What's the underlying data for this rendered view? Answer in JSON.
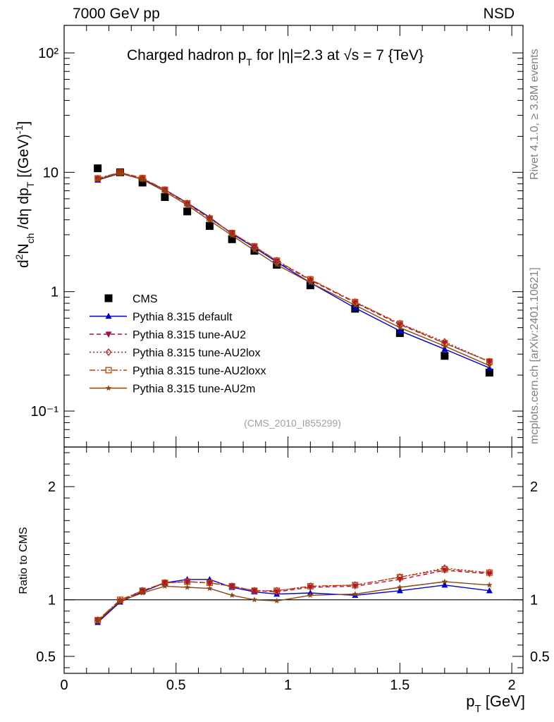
{
  "header": {
    "left": "7000 GeV pp",
    "right": "NSD"
  },
  "side_labels": {
    "rivet": "Rivet 4.1.0, ≥ 3.8M events",
    "mcplots": "mcplots.cern.ch [arXiv:2401.10621]"
  },
  "chart_data": [
    {
      "type": "line",
      "panel": "main",
      "title": "Charged hadron p_T for |η|=2.3 at √s = 7 {TeV}",
      "ylabel": "d²N_ch/dη dp_T [(GeV)⁻¹]",
      "xlabel": "",
      "yscale": "log",
      "xlim": [
        0,
        2.05
      ],
      "ylim": [
        0.05,
        170
      ],
      "y_ticks": [
        {
          "value": 100,
          "label": "10²"
        },
        {
          "value": 10,
          "label": "10"
        },
        {
          "value": 1,
          "label": "1"
        },
        {
          "value": 0.1,
          "label": "10⁻¹"
        }
      ],
      "x": [
        0.15,
        0.25,
        0.35,
        0.45,
        0.55,
        0.65,
        0.75,
        0.85,
        0.95,
        1.1,
        1.3,
        1.5,
        1.7,
        1.9
      ],
      "series": [
        {
          "name": "CMS",
          "color": "#000000",
          "marker": "square",
          "line": "none",
          "values": [
            10.8,
            10.0,
            8.2,
            6.2,
            4.7,
            3.55,
            2.75,
            2.2,
            1.68,
            1.13,
            0.72,
            0.45,
            0.29,
            0.21
          ]
        },
        {
          "name": "Pythia 8.315 default",
          "color": "#0000cc",
          "marker": "triangle-up",
          "line": "solid",
          "values": [
            8.6,
            9.8,
            8.75,
            7.15,
            5.55,
            4.2,
            3.05,
            2.35,
            1.77,
            1.19,
            0.73,
            0.47,
            0.33,
            0.23
          ]
        },
        {
          "name": "Pythia 8.315 tune-AU2",
          "color": "#a01050",
          "marker": "triangle-down",
          "line": "dashed",
          "values": [
            8.8,
            9.9,
            8.85,
            7.1,
            5.45,
            4.1,
            3.1,
            2.38,
            1.8,
            1.25,
            0.81,
            0.53,
            0.37,
            0.26
          ]
        },
        {
          "name": "Pythia 8.315 tune-AU2lox",
          "color": "#b02020",
          "marker": "diamond-open",
          "line": "dotted",
          "values": [
            8.85,
            9.95,
            8.9,
            7.1,
            5.45,
            4.1,
            3.08,
            2.38,
            1.82,
            1.26,
            0.82,
            0.54,
            0.38,
            0.26
          ]
        },
        {
          "name": "Pythia 8.315 tune-AU2loxx",
          "color": "#c04000",
          "marker": "square-open",
          "line": "dashdot",
          "values": [
            8.9,
            10.0,
            8.95,
            7.15,
            5.5,
            4.1,
            3.1,
            2.4,
            1.82,
            1.27,
            0.82,
            0.54,
            0.37,
            0.26
          ]
        },
        {
          "name": "Pythia 8.315 tune-AU2m",
          "color": "#8b4513",
          "marker": "star",
          "line": "solid",
          "values": [
            8.7,
            9.85,
            8.7,
            6.9,
            5.3,
            3.95,
            2.95,
            2.22,
            1.68,
            1.19,
            0.77,
            0.5,
            0.35,
            0.24
          ]
        }
      ],
      "legend_position": "bottom-left",
      "annotation": "(CMS_2010_I855299)"
    },
    {
      "type": "line",
      "panel": "ratio",
      "ylabel": "Ratio to CMS",
      "xlabel": "p_T [GeV]",
      "yscale": "linear",
      "xlim": [
        0,
        2.05
      ],
      "ylim": [
        0.35,
        2.35
      ],
      "x_ticks": [
        {
          "value": 0,
          "label": "0"
        },
        {
          "value": 0.5,
          "label": "0.5"
        },
        {
          "value": 1,
          "label": "1"
        },
        {
          "value": 1.5,
          "label": "1.5"
        },
        {
          "value": 2,
          "label": "2"
        }
      ],
      "y_ticks": [
        {
          "value": 2,
          "label": "2"
        },
        {
          "value": 1,
          "label": "1"
        },
        {
          "value": 0.5,
          "label": "0.5"
        }
      ],
      "reference_line": 1,
      "x": [
        0.15,
        0.25,
        0.35,
        0.45,
        0.55,
        0.65,
        0.75,
        0.85,
        0.95,
        1.1,
        1.3,
        1.5,
        1.7,
        1.9
      ],
      "series": [
        {
          "name": "Pythia 8.315 default",
          "color": "#0000cc",
          "marker": "triangle-up",
          "line": "solid",
          "values": [
            0.8,
            0.98,
            1.07,
            1.15,
            1.18,
            1.18,
            1.11,
            1.07,
            1.05,
            1.06,
            1.04,
            1.08,
            1.13,
            1.08
          ]
        },
        {
          "name": "Pythia 8.315 tune-AU2",
          "color": "#a01050",
          "marker": "triangle-down",
          "line": "dashed",
          "values": [
            0.82,
            0.99,
            1.08,
            1.15,
            1.16,
            1.15,
            1.12,
            1.08,
            1.07,
            1.11,
            1.12,
            1.18,
            1.26,
            1.23
          ]
        },
        {
          "name": "Pythia 8.315 tune-AU2lox",
          "color": "#b02020",
          "marker": "diamond-open",
          "line": "dotted",
          "values": [
            0.82,
            0.99,
            1.08,
            1.15,
            1.16,
            1.15,
            1.12,
            1.08,
            1.08,
            1.12,
            1.13,
            1.2,
            1.28,
            1.24
          ]
        },
        {
          "name": "Pythia 8.315 tune-AU2loxx",
          "color": "#c04000",
          "marker": "square-open",
          "line": "dashdot",
          "values": [
            0.82,
            1.0,
            1.08,
            1.15,
            1.16,
            1.15,
            1.12,
            1.08,
            1.08,
            1.12,
            1.13,
            1.2,
            1.27,
            1.24
          ]
        },
        {
          "name": "Pythia 8.315 tune-AU2m",
          "color": "#8b4513",
          "marker": "star",
          "line": "solid",
          "values": [
            0.81,
            0.99,
            1.06,
            1.12,
            1.11,
            1.1,
            1.04,
            1.0,
            0.99,
            1.04,
            1.05,
            1.11,
            1.16,
            1.13
          ]
        }
      ]
    }
  ]
}
